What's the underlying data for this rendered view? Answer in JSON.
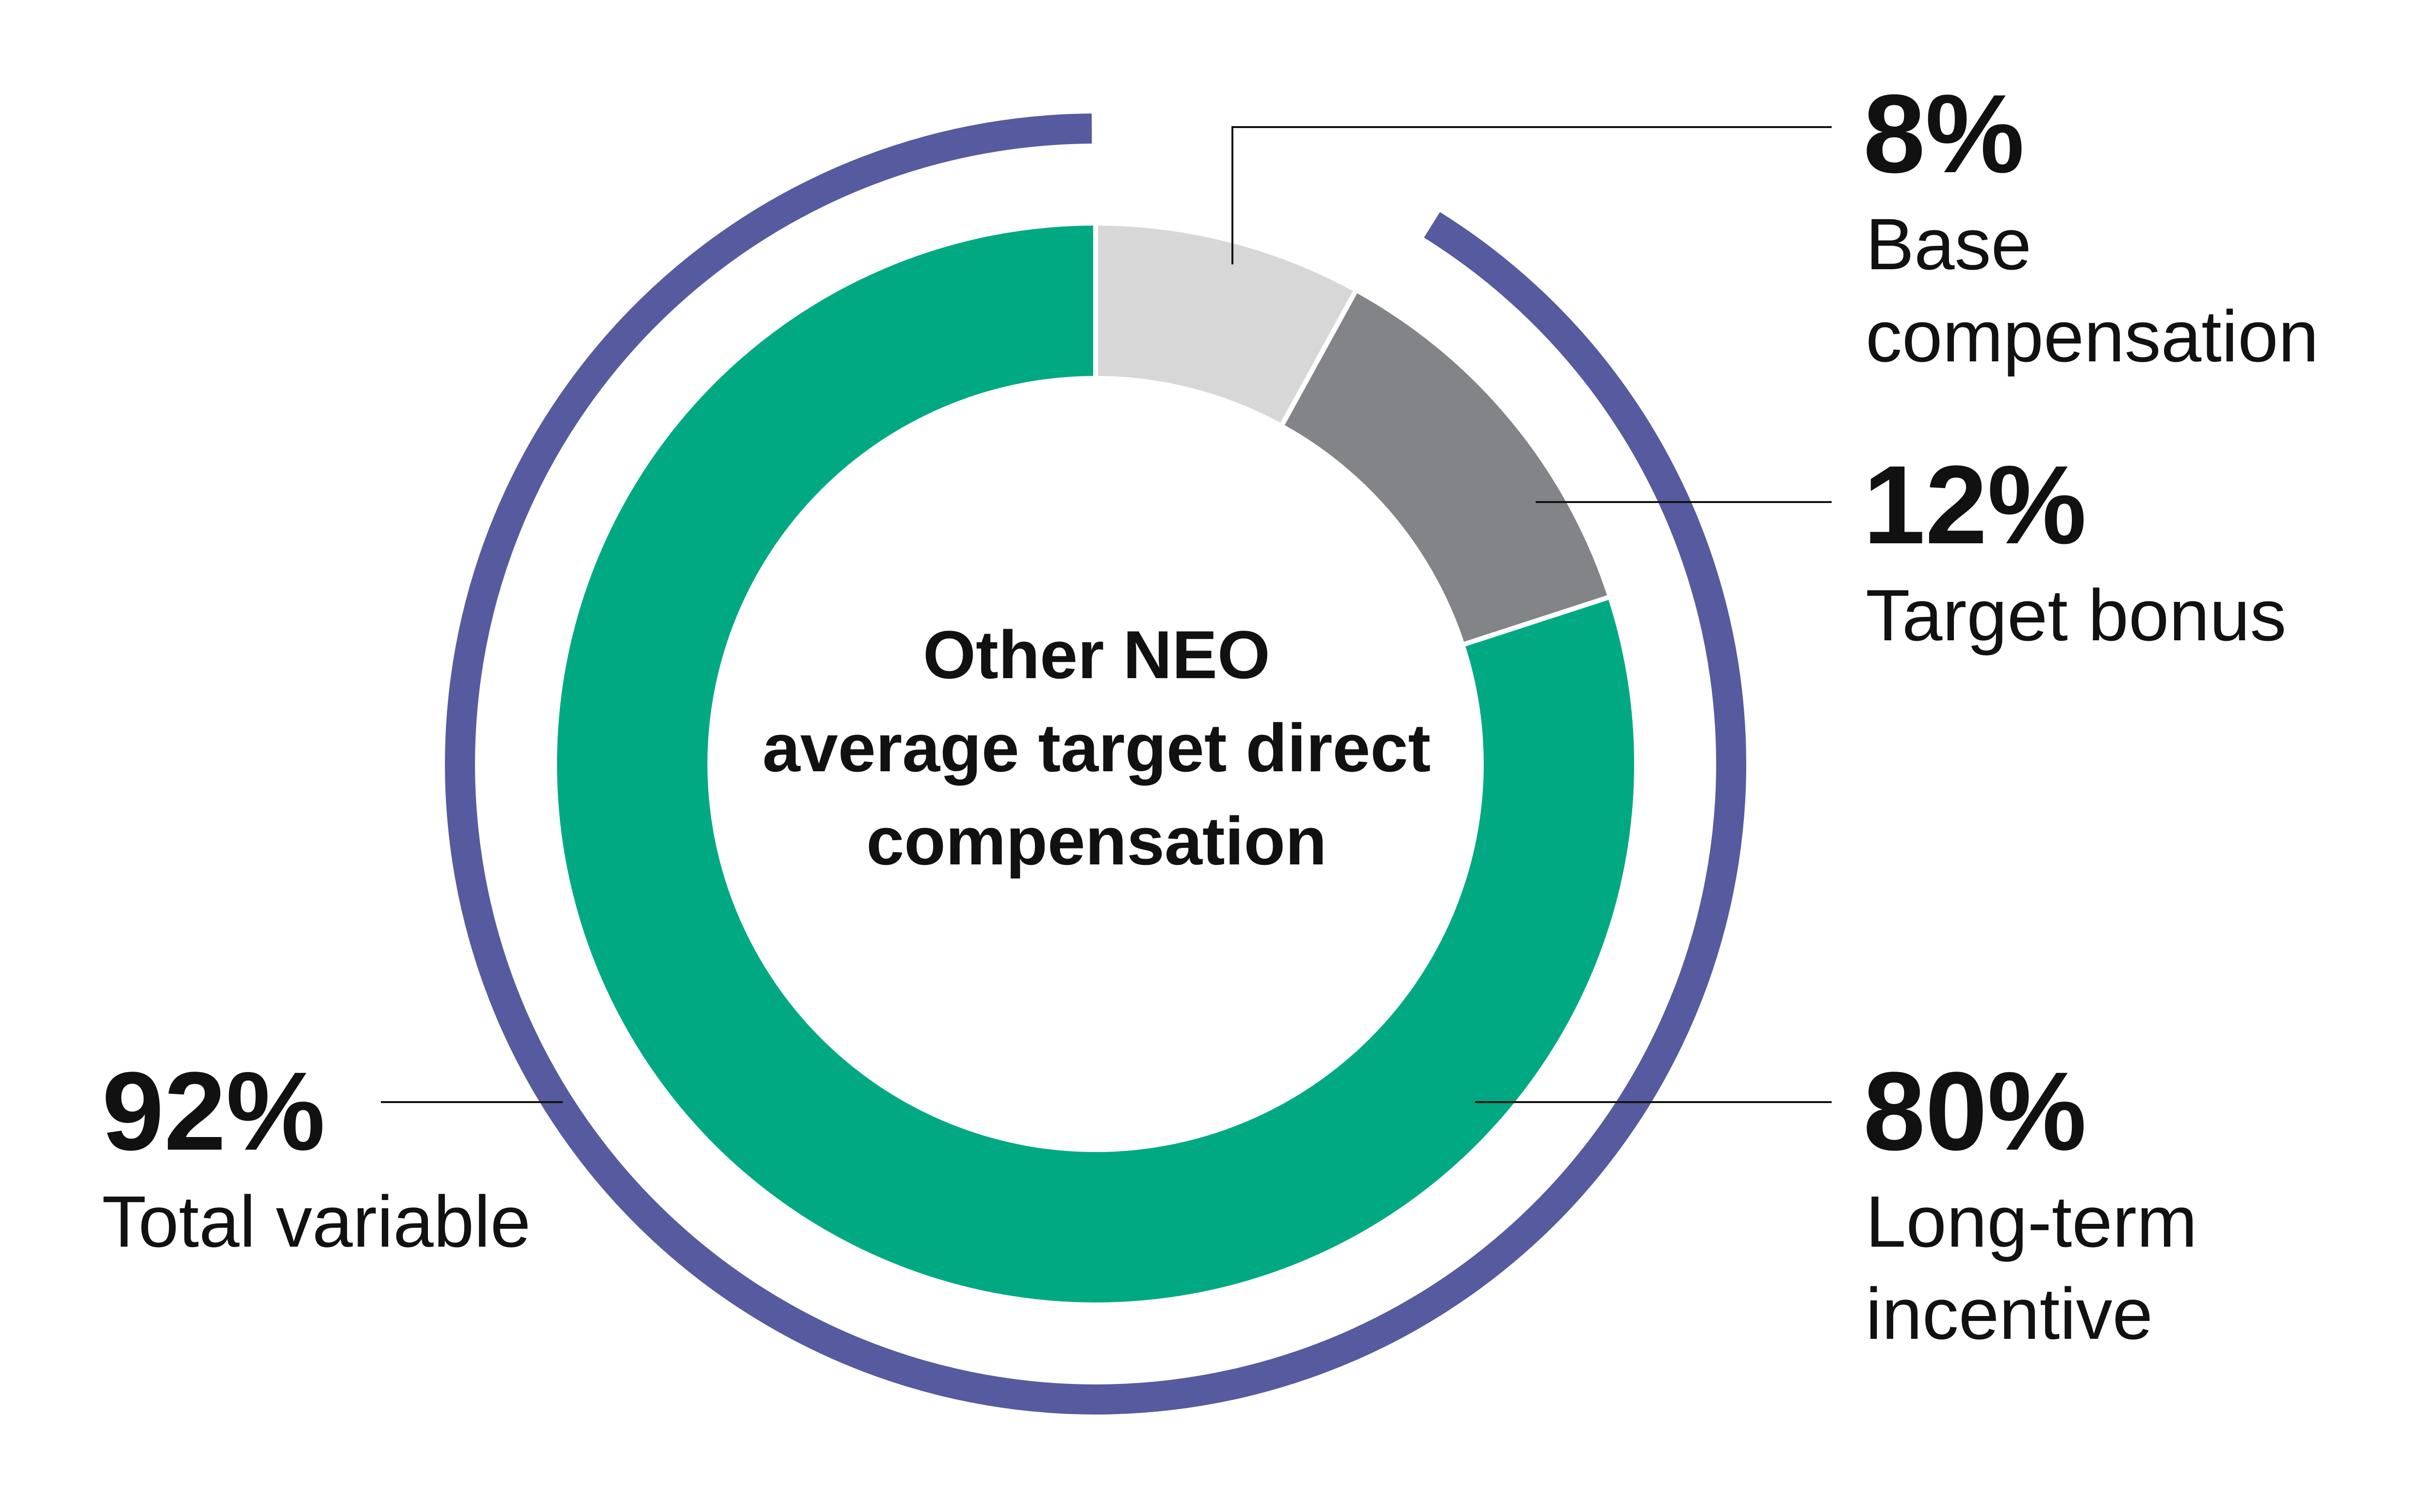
{
  "chart_data": {
    "type": "pie",
    "style": "donut",
    "title": "",
    "center_label": [
      "Other NEO",
      "average target direct",
      "compensation"
    ],
    "slices": [
      {
        "label_lines": [
          "Base",
          "compensation"
        ],
        "value": 8,
        "value_label": "8%",
        "color": "#d7d7d7"
      },
      {
        "label_lines": [
          "Target bonus"
        ],
        "value": 12,
        "value_label": "12%",
        "color": "#838487"
      },
      {
        "label_lines": [
          "Long-term",
          "incentive"
        ],
        "value": 80,
        "value_label": "80%",
        "color": "#00a982"
      }
    ],
    "outer_arc": {
      "label_lines": [
        "Total variable"
      ],
      "value": 92,
      "value_label": "92%",
      "color": "#565a9f"
    },
    "separator_color": "#ffffff",
    "leader_line_color": "#111111"
  }
}
